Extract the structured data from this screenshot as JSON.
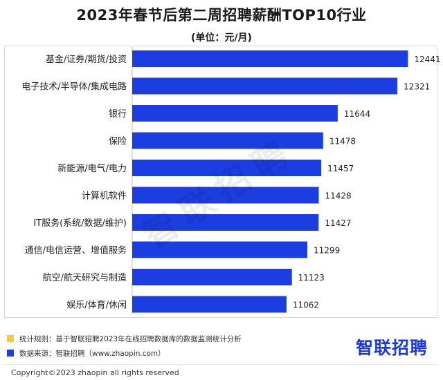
{
  "title": "2023年春节后第二周招聘薪酬TOP10行业",
  "unit_label": "(单位：元/月)",
  "watermark": "智联招聘",
  "chart_data": {
    "type": "bar",
    "orientation": "horizontal",
    "title": "2023年春节后第二周招聘薪酬TOP10行业",
    "unit": "(单位：元/月)",
    "bar_color": "#1c3de0",
    "categories": [
      "基金/证券/期货/投资",
      "电子技术/半导体/集成电路",
      "银行",
      "保险",
      "新能源/电气/电力",
      "计算机软件",
      "IT服务(系统/数据/维护)",
      "通信/电信运营、增值服务",
      "航空/航天研究与制造",
      "娱乐/体育/休闲"
    ],
    "values": [
      12441,
      12321,
      11644,
      11478,
      11457,
      11428,
      11427,
      11299,
      11123,
      11062
    ],
    "value_labels": [
      "12441",
      "12321",
      "11644",
      "11478",
      "11457",
      "11428",
      "11427",
      "11299",
      "11123",
      "11062"
    ],
    "xlim": [
      9310,
      12800
    ]
  },
  "footer": {
    "rule_label": "统计规则：基于智联招聘2023年在线招聘数据库的数据监测统计分析",
    "source_label": "数据来源：智联招聘（www.zhaopin.com）",
    "rule_color": "#f2c94c",
    "source_color": "#1c3de0",
    "brand": "智联招聘",
    "copyright": "Copyright©2023 zhaopin all rights reserved"
  }
}
